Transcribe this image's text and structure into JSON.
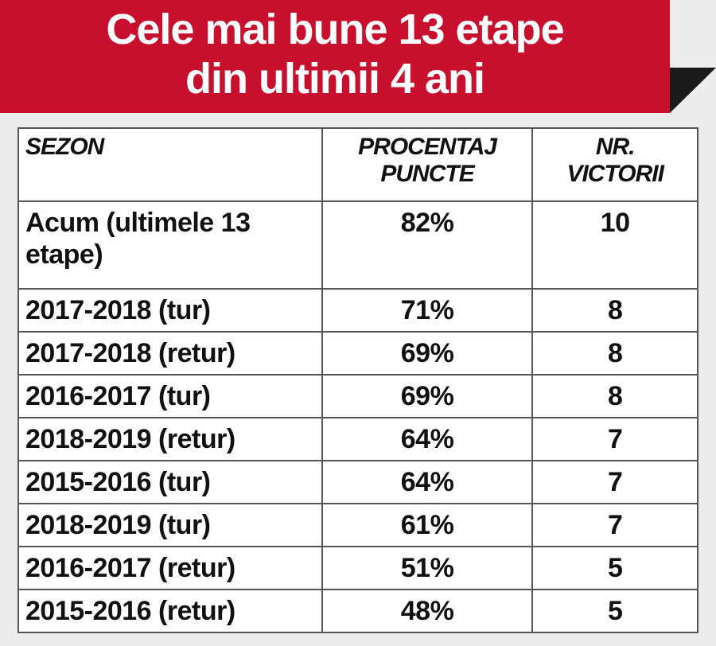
{
  "header": {
    "title_lines": [
      "Cele mai bune 13 etape",
      "din ultimii 4 ani"
    ]
  },
  "table": {
    "columns": [
      "SEZON",
      "PROCENTAJ PUNCTE",
      "NR. VICTORII"
    ],
    "rows": [
      [
        "Acum (ultimele 13 etape)",
        "82%",
        10
      ],
      [
        "2017-2018 (tur)",
        "71%",
        8
      ],
      [
        "2017-2018 (retur)",
        "69%",
        8
      ],
      [
        "2016-2017 (tur)",
        "69%",
        8
      ],
      [
        "2018-2019 (retur)",
        "64%",
        7
      ],
      [
        "2015-2016 (tur)",
        "64%",
        7
      ],
      [
        "2018-2019 (tur)",
        "61%",
        7
      ],
      [
        "2016-2017 (retur)",
        "51%",
        5
      ],
      [
        "2015-2016 (retur)",
        "48%",
        5
      ]
    ]
  }
}
